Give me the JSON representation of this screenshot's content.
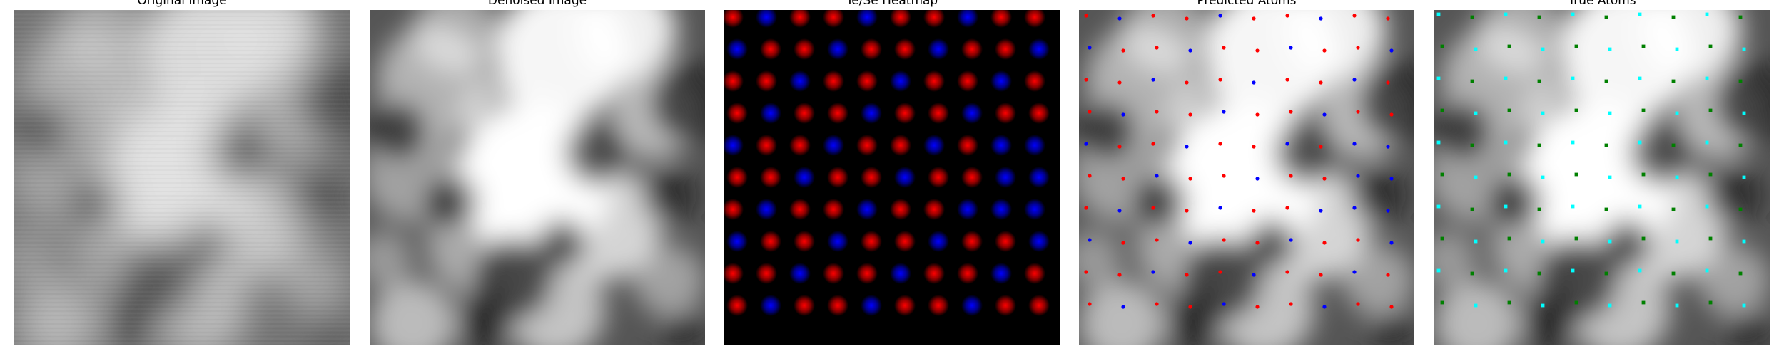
{
  "panels": [
    {
      "id": "original",
      "title": "Original Image"
    },
    {
      "id": "denoised",
      "title": "Denoised Image"
    },
    {
      "id": "heatmap",
      "title": "Te/Se Heatmap"
    },
    {
      "id": "predicted",
      "title": "Predicted Atoms"
    },
    {
      "id": "true",
      "title": "True Atoms"
    }
  ],
  "colors": {
    "te_heatmap": "#ff0000",
    "se_heatmap": "#0000ff",
    "predicted_te": "#ff0000",
    "predicted_se": "#0000ff",
    "true_te": "#00ffff",
    "true_se": "#008000"
  }
}
